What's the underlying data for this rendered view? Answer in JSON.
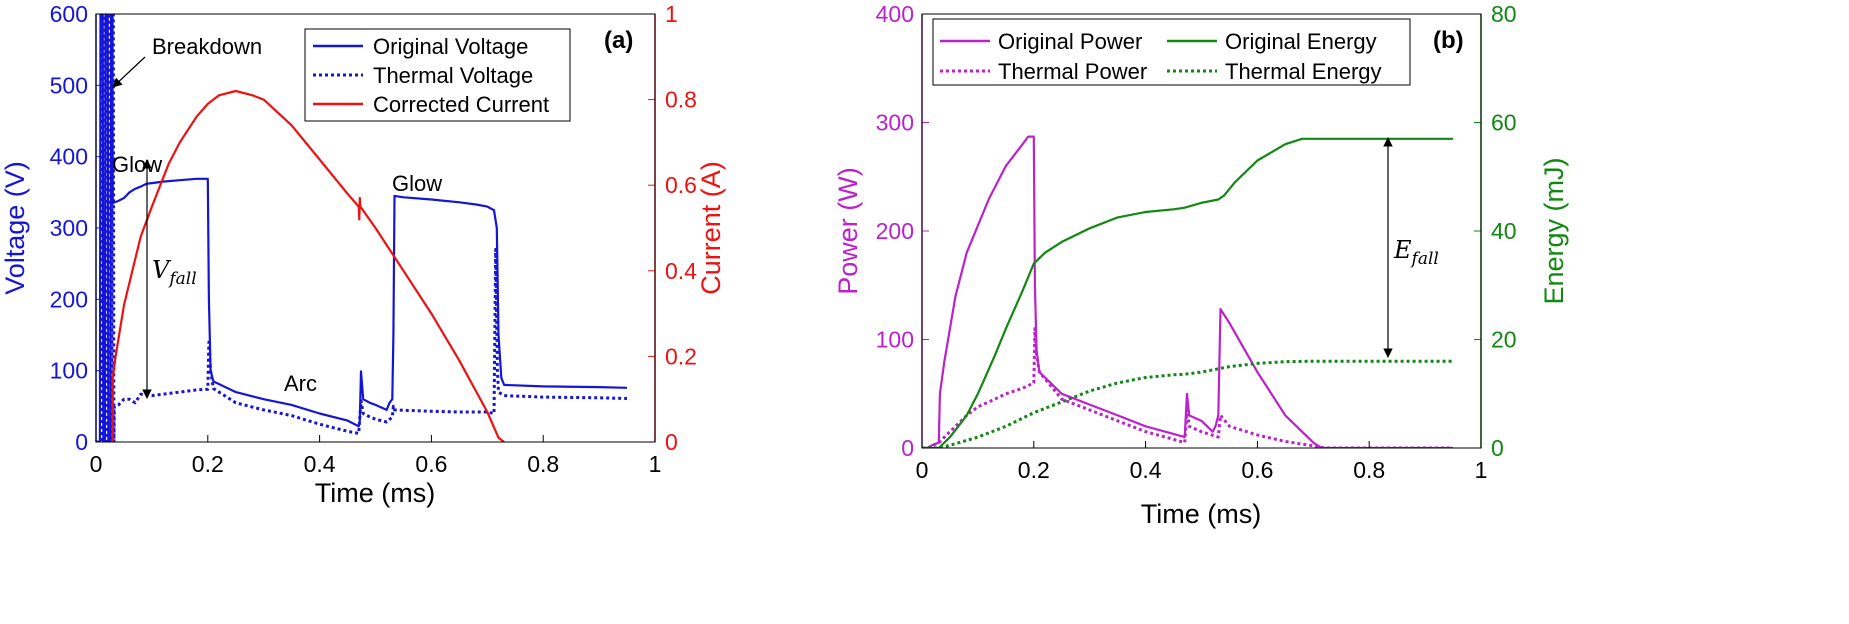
{
  "chart_data": [
    {
      "type": "line",
      "panel_label": "(a)",
      "xlabel": "Time (ms)",
      "ylabel_left": "Voltage (V)",
      "ylabel_right": "Current (A)",
      "xlim": [
        0,
        1
      ],
      "ylim_left": [
        0,
        600
      ],
      "ylim_right": [
        0,
        1
      ],
      "xticks": [
        "0",
        "0.2",
        "0.4",
        "0.6",
        "0.8",
        "1"
      ],
      "yticks_left": [
        "0",
        "100",
        "200",
        "300",
        "400",
        "500",
        "600"
      ],
      "yticks_right": [
        "0",
        "0.2",
        "0.4",
        "0.6",
        "0.8",
        "1"
      ],
      "colors": {
        "voltage": "#1515d6",
        "current": "#ee1111"
      },
      "legend_position": "top-right",
      "legend": [
        "Original Voltage",
        "Thermal Voltage",
        "Corrected Current"
      ],
      "annotations": {
        "breakdown": "Breakdown",
        "glow_1": "Glow",
        "glow_2": "Glow",
        "arc": "Arc",
        "v_fall_base": "V",
        "v_fall_sub": "fall"
      },
      "series": [
        {
          "name": "Original Voltage",
          "axis": "left",
          "style": "solid",
          "points": [
            [
              0,
              0
            ],
            [
              0.007,
              0
            ],
            [
              0.008,
              600
            ],
            [
              0.012,
              600
            ],
            [
              0.013,
              0
            ],
            [
              0.016,
              0
            ],
            [
              0.017,
              600
            ],
            [
              0.021,
              600
            ],
            [
              0.022,
              0
            ],
            [
              0.026,
              0
            ],
            [
              0.027,
              600
            ],
            [
              0.029,
              600
            ],
            [
              0.03,
              335
            ],
            [
              0.04,
              338
            ],
            [
              0.05,
              342
            ],
            [
              0.06,
              350
            ],
            [
              0.07,
              355
            ],
            [
              0.08,
              358
            ],
            [
              0.09,
              362
            ],
            [
              0.1,
              363
            ],
            [
              0.12,
              365
            ],
            [
              0.15,
              367
            ],
            [
              0.18,
              369
            ],
            [
              0.2,
              369
            ],
            [
              0.202,
              200
            ],
            [
              0.205,
              100
            ],
            [
              0.21,
              85
            ],
            [
              0.25,
              70
            ],
            [
              0.3,
              60
            ],
            [
              0.35,
              52
            ],
            [
              0.4,
              40
            ],
            [
              0.45,
              30
            ],
            [
              0.47,
              22
            ],
            [
              0.472,
              30
            ],
            [
              0.474,
              99
            ],
            [
              0.478,
              60
            ],
            [
              0.49,
              55
            ],
            [
              0.5,
              52
            ],
            [
              0.52,
              45
            ],
            [
              0.525,
              55
            ],
            [
              0.53,
              60
            ],
            [
              0.532,
              150
            ],
            [
              0.534,
              345
            ],
            [
              0.55,
              343
            ],
            [
              0.6,
              340
            ],
            [
              0.65,
              336
            ],
            [
              0.68,
              333
            ],
            [
              0.7,
              330
            ],
            [
              0.712,
              325
            ],
            [
              0.717,
              300
            ],
            [
              0.72,
              150
            ],
            [
              0.725,
              90
            ],
            [
              0.73,
              80
            ],
            [
              0.8,
              78
            ],
            [
              0.9,
              77
            ],
            [
              0.95,
              76
            ]
          ]
        },
        {
          "name": "Thermal Voltage",
          "axis": "left",
          "style": "dotted",
          "points": [
            [
              0,
              0
            ],
            [
              0.009,
              0
            ],
            [
              0.01,
              600
            ],
            [
              0.014,
              600
            ],
            [
              0.015,
              0
            ],
            [
              0.018,
              0
            ],
            [
              0.019,
              600
            ],
            [
              0.023,
              600
            ],
            [
              0.024,
              0
            ],
            [
              0.028,
              0
            ],
            [
              0.029,
              600
            ],
            [
              0.031,
              600
            ],
            [
              0.032,
              0
            ],
            [
              0.033,
              50
            ],
            [
              0.04,
              52
            ],
            [
              0.05,
              60
            ],
            [
              0.06,
              60
            ],
            [
              0.07,
              55
            ],
            [
              0.08,
              67
            ],
            [
              0.1,
              65
            ],
            [
              0.12,
              67
            ],
            [
              0.15,
              70
            ],
            [
              0.18,
              73
            ],
            [
              0.2,
              74
            ],
            [
              0.202,
              140
            ],
            [
              0.205,
              100
            ],
            [
              0.21,
              75
            ],
            [
              0.25,
              55
            ],
            [
              0.3,
              45
            ],
            [
              0.35,
              37
            ],
            [
              0.4,
              25
            ],
            [
              0.45,
              15
            ],
            [
              0.47,
              12
            ],
            [
              0.474,
              58
            ],
            [
              0.478,
              40
            ],
            [
              0.49,
              35
            ],
            [
              0.5,
              32
            ],
            [
              0.52,
              28
            ],
            [
              0.53,
              35
            ],
            [
              0.532,
              50
            ],
            [
              0.534,
              45
            ],
            [
              0.6,
              43
            ],
            [
              0.65,
              42
            ],
            [
              0.7,
              42
            ],
            [
              0.712,
              40
            ],
            [
              0.715,
              270
            ],
            [
              0.718,
              100
            ],
            [
              0.72,
              70
            ],
            [
              0.73,
              65
            ],
            [
              0.8,
              63
            ],
            [
              0.9,
              62
            ],
            [
              0.95,
              61
            ]
          ]
        },
        {
          "name": "Corrected Current",
          "axis": "right",
          "style": "solid",
          "points": [
            [
              0.03,
              0
            ],
            [
              0.03,
              0.15
            ],
            [
              0.035,
              0.2
            ],
            [
              0.05,
              0.32
            ],
            [
              0.08,
              0.48
            ],
            [
              0.1,
              0.55
            ],
            [
              0.13,
              0.65
            ],
            [
              0.15,
              0.7
            ],
            [
              0.18,
              0.76
            ],
            [
              0.2,
              0.79
            ],
            [
              0.22,
              0.81
            ],
            [
              0.25,
              0.82
            ],
            [
              0.28,
              0.81
            ],
            [
              0.3,
              0.8
            ],
            [
              0.35,
              0.74
            ],
            [
              0.4,
              0.66
            ],
            [
              0.45,
              0.58
            ],
            [
              0.47,
              0.55
            ],
            [
              0.471,
              0.52
            ],
            [
              0.472,
              0.57
            ],
            [
              0.473,
              0.55
            ],
            [
              0.5,
              0.5
            ],
            [
              0.55,
              0.4
            ],
            [
              0.6,
              0.3
            ],
            [
              0.65,
              0.19
            ],
            [
              0.7,
              0.07
            ],
            [
              0.72,
              0.01
            ],
            [
              0.73,
              0
            ]
          ]
        }
      ]
    },
    {
      "type": "line",
      "panel_label": "(b)",
      "xlabel": "Time (ms)",
      "ylabel_left": "Power (W)",
      "ylabel_right": "Energy (mJ)",
      "xlim": [
        0,
        1
      ],
      "ylim_left": [
        0,
        400
      ],
      "ylim_right": [
        0,
        80
      ],
      "xticks": [
        "0",
        "0.2",
        "0.4",
        "0.6",
        "0.8",
        "1"
      ],
      "yticks_left": [
        "0",
        "100",
        "200",
        "300",
        "400"
      ],
      "yticks_right": [
        "0",
        "20",
        "40",
        "60",
        "80"
      ],
      "colors": {
        "power": "#bb22cc",
        "energy": "#118811"
      },
      "legend_position": "top",
      "legend": [
        "Original Power",
        "Original Energy",
        "Thermal Power",
        "Thermal Energy"
      ],
      "annotations": {
        "e_fall_base": "E",
        "e_fall_sub": "fall"
      },
      "series": [
        {
          "name": "Original Power",
          "axis": "left",
          "style": "solid",
          "points": [
            [
              0,
              0
            ],
            [
              0.01,
              0
            ],
            [
              0.02,
              3
            ],
            [
              0.03,
              5
            ],
            [
              0.032,
              50
            ],
            [
              0.04,
              80
            ],
            [
              0.06,
              140
            ],
            [
              0.08,
              180
            ],
            [
              0.1,
              205
            ],
            [
              0.12,
              230
            ],
            [
              0.15,
              260
            ],
            [
              0.18,
              280
            ],
            [
              0.19,
              287
            ],
            [
              0.2,
              287
            ],
            [
              0.202,
              150
            ],
            [
              0.205,
              90
            ],
            [
              0.21,
              70
            ],
            [
              0.25,
              50
            ],
            [
              0.3,
              40
            ],
            [
              0.35,
              30
            ],
            [
              0.4,
              20
            ],
            [
              0.45,
              13
            ],
            [
              0.47,
              10
            ],
            [
              0.474,
              50
            ],
            [
              0.478,
              30
            ],
            [
              0.5,
              25
            ],
            [
              0.52,
              15
            ],
            [
              0.525,
              20
            ],
            [
              0.53,
              30
            ],
            [
              0.534,
              128
            ],
            [
              0.55,
              115
            ],
            [
              0.6,
              70
            ],
            [
              0.65,
              30
            ],
            [
              0.7,
              5
            ],
            [
              0.715,
              0
            ],
            [
              0.8,
              0
            ],
            [
              0.9,
              0
            ],
            [
              0.95,
              0
            ]
          ]
        },
        {
          "name": "Thermal Power",
          "axis": "left",
          "style": "dotted",
          "points": [
            [
              0,
              0
            ],
            [
              0.01,
              0
            ],
            [
              0.03,
              5
            ],
            [
              0.04,
              10
            ],
            [
              0.06,
              20
            ],
            [
              0.08,
              30
            ],
            [
              0.1,
              38
            ],
            [
              0.13,
              45
            ],
            [
              0.15,
              50
            ],
            [
              0.18,
              55
            ],
            [
              0.2,
              60
            ],
            [
              0.202,
              110
            ],
            [
              0.205,
              85
            ],
            [
              0.21,
              70
            ],
            [
              0.25,
              45
            ],
            [
              0.3,
              35
            ],
            [
              0.35,
              25
            ],
            [
              0.4,
              15
            ],
            [
              0.45,
              8
            ],
            [
              0.47,
              5
            ],
            [
              0.474,
              35
            ],
            [
              0.478,
              20
            ],
            [
              0.5,
              15
            ],
            [
              0.53,
              10
            ],
            [
              0.534,
              30
            ],
            [
              0.55,
              20
            ],
            [
              0.6,
              12
            ],
            [
              0.65,
              6
            ],
            [
              0.7,
              2
            ],
            [
              0.72,
              0
            ],
            [
              0.8,
              0
            ],
            [
              0.95,
              0
            ]
          ]
        },
        {
          "name": "Original Energy",
          "axis": "right",
          "style": "solid",
          "points": [
            [
              0,
              0
            ],
            [
              0.03,
              0
            ],
            [
              0.05,
              2
            ],
            [
              0.08,
              6
            ],
            [
              0.1,
              10
            ],
            [
              0.13,
              17
            ],
            [
              0.15,
              22
            ],
            [
              0.18,
              29
            ],
            [
              0.2,
              34
            ],
            [
              0.22,
              36
            ],
            [
              0.25,
              38
            ],
            [
              0.3,
              40.5
            ],
            [
              0.35,
              42.5
            ],
            [
              0.4,
              43.5
            ],
            [
              0.45,
              44
            ],
            [
              0.47,
              44.3
            ],
            [
              0.5,
              45.2
            ],
            [
              0.53,
              45.8
            ],
            [
              0.54,
              46.5
            ],
            [
              0.56,
              49
            ],
            [
              0.6,
              53
            ],
            [
              0.65,
              56
            ],
            [
              0.68,
              57
            ],
            [
              0.7,
              57
            ],
            [
              0.8,
              57
            ],
            [
              0.95,
              57
            ]
          ]
        },
        {
          "name": "Thermal Energy",
          "axis": "right",
          "style": "dotted",
          "points": [
            [
              0,
              0
            ],
            [
              0.03,
              0
            ],
            [
              0.05,
              0.5
            ],
            [
              0.1,
              2
            ],
            [
              0.15,
              4
            ],
            [
              0.2,
              6.5
            ],
            [
              0.25,
              8.5
            ],
            [
              0.3,
              10.5
            ],
            [
              0.35,
              12
            ],
            [
              0.4,
              13
            ],
            [
              0.45,
              13.5
            ],
            [
              0.47,
              13.6
            ],
            [
              0.5,
              14
            ],
            [
              0.53,
              14.6
            ],
            [
              0.55,
              15
            ],
            [
              0.6,
              15.6
            ],
            [
              0.65,
              15.9
            ],
            [
              0.7,
              16
            ],
            [
              0.8,
              16
            ],
            [
              0.95,
              16
            ]
          ]
        }
      ]
    }
  ]
}
